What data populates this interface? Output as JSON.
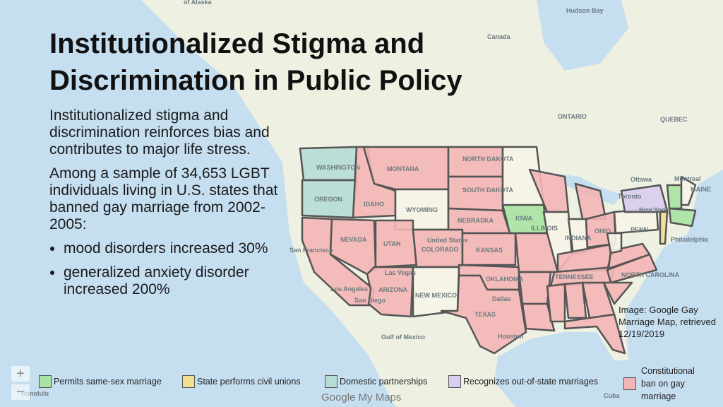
{
  "title": "Institutionalized Stigma and Discrimination in Public Policy",
  "body": {
    "paragraphs": [
      "Institutionalized stigma and discrimination reinforces bias and contributes to major life stress.",
      "Among a sample of 34,653 LGBT individuals living in U.S. states that banned gay marriage from 2002-2005:"
    ],
    "bullets": [
      "mood disorders increased 30%",
      "generalized anxiety disorder increased 200%"
    ]
  },
  "caption": "Image: Google Gay Marriage Map, retrieved 12/19/2019",
  "legend": [
    {
      "label": "Permits same-sex marriage",
      "color": "#a9e3a4"
    },
    {
      "label": "State performs civil unions",
      "color": "#f1df93"
    },
    {
      "label": "Domestic partnerships",
      "color": "#b5dcd5"
    },
    {
      "label": "Recognizes out-of-state marriages",
      "color": "#d8cdee"
    },
    {
      "label": "Constitutional ban on gay marriage",
      "color": "#f3b5b5"
    }
  ],
  "map_labels": [
    "of Alaska",
    "Hudson Bay",
    "Canada",
    "ONTARIO",
    "QUEBEC",
    "WASHINGTON",
    "OREGON",
    "MONTANA",
    "NORTH DAKOTA",
    "SOUTH DAKOTA",
    "IDAHO",
    "WYOMING",
    "NEBRASKA",
    "NEVADA",
    "UTAH",
    "COLORADO",
    "KANSAS",
    "United States",
    "ARIZONA",
    "NEW MEXICO",
    "OKLAHOMA",
    "TEXAS",
    "IOWA",
    "ILLINOIS",
    "INDIANA",
    "OHIO",
    "PENN",
    "TENNESSEE",
    "NORTH CAROLINA",
    "Ottawa",
    "Montreal",
    "Toronto",
    "MAINE",
    "New York",
    "Philadelphia",
    "San Francisco",
    "Los Angeles",
    "San Diego",
    "Las Vegas",
    "Dallas",
    "Houston",
    "Gulf of Mexico",
    "Honolulu",
    "Cuba"
  ],
  "map_controls": [
    "+",
    "−"
  ],
  "attribution": "Google My Maps"
}
